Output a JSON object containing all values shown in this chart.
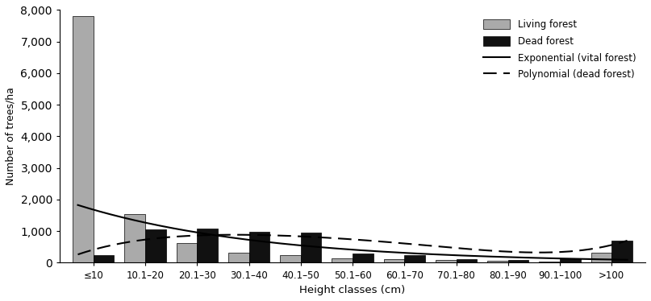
{
  "categories": [
    "≤10",
    "10.1–20",
    "20.1–30",
    "30.1–40",
    "40.1–50",
    "50.1–60",
    "60.1–70",
    "70.1–80",
    "80.1–90",
    "90.1–100",
    ">100"
  ],
  "living_forest": [
    7800,
    1550,
    620,
    320,
    230,
    150,
    120,
    80,
    60,
    50,
    320
  ],
  "dead_forest": [
    250,
    1050,
    1080,
    970,
    950,
    280,
    250,
    120,
    80,
    130,
    700
  ],
  "living_color": "#aaaaaa",
  "dead_color": "#111111",
  "ylabel": "Number of trees/ha",
  "xlabel": "Height classes (cm)",
  "ylim": [
    0,
    8000
  ],
  "yticks": [
    0,
    1000,
    2000,
    3000,
    4000,
    5000,
    6000,
    7000,
    8000
  ],
  "legend_labels": [
    "Living forest",
    "Dead forest",
    "Exponential (vital forest)",
    "Polynomial (dead forest)"
  ],
  "exp_A": 1680,
  "exp_b": 0.28,
  "poly_xpts": [
    0,
    1,
    2,
    3,
    4,
    5,
    6,
    7,
    8,
    9,
    10
  ],
  "poly_ypts": [
    400,
    780,
    830,
    850,
    870,
    750,
    620,
    450,
    320,
    380,
    550
  ],
  "background_color": "#ffffff",
  "figsize": [
    8.07,
    3.74
  ],
  "dpi": 100
}
